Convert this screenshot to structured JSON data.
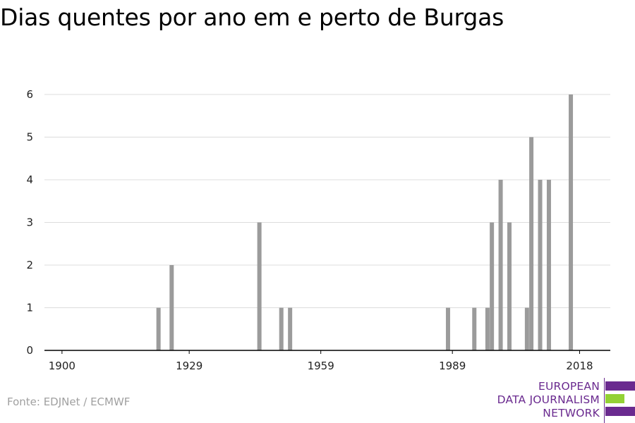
{
  "title": "Dias quentes por ano em e perto de Burgas",
  "source": "Fonte: EDJNet / ECMWF",
  "logo": {
    "lines": [
      "EUROPEAN",
      "DATA JOURNALISM",
      "NETWORK"
    ],
    "colors": {
      "purple": "#6a2a8f",
      "green": "#93d135"
    }
  },
  "chart_data": {
    "type": "bar",
    "title": "Dias quentes por ano em e perto de Burgas",
    "xlabel": "",
    "ylabel": "",
    "xlim": [
      1896,
      2025
    ],
    "ylim": [
      0,
      6
    ],
    "x_ticks": [
      1900,
      1929,
      1959,
      1989,
      2018
    ],
    "y_ticks": [
      0,
      1,
      2,
      3,
      4,
      5,
      6
    ],
    "grid": "horizontal",
    "bar_color": "#9b9b9b",
    "x": [
      1922,
      1925,
      1945,
      1950,
      1952,
      1988,
      1994,
      1997,
      1998,
      2000,
      2002,
      2006,
      2007,
      2009,
      2011,
      2016
    ],
    "values": [
      1,
      2,
      3,
      1,
      1,
      1,
      1,
      1,
      3,
      4,
      3,
      1,
      5,
      4,
      4,
      6
    ]
  }
}
